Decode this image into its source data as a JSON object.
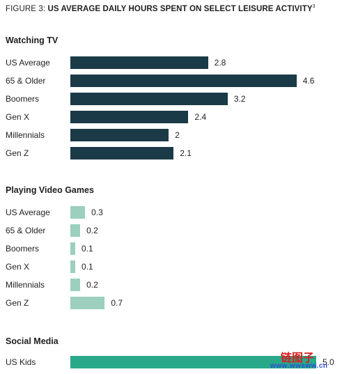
{
  "chart_data": {
    "type": "bar",
    "orientation": "horizontal",
    "title_prefix": "FIGURE 3:",
    "title": "US AVERAGE DAILY HOURS SPENT ON SELECT LEISURE ACTIVITY",
    "title_superscript": "3",
    "scale_max": 5.0,
    "groups": [
      {
        "name": "Watching TV",
        "color": "#1b3a47",
        "categories": [
          "US Average",
          "65 & Older",
          "Boomers",
          "Gen X",
          "Millennials",
          "Gen Z"
        ],
        "values": [
          2.8,
          4.6,
          3.2,
          2.4,
          2,
          2.1
        ],
        "value_labels": [
          "2.8",
          "4.6",
          "3.2",
          "2.4",
          "2",
          "2.1"
        ]
      },
      {
        "name": "Playing Video Games",
        "color": "#9ccfbd",
        "categories": [
          "US Average",
          "65 & Older",
          "Boomers",
          "Gen X",
          "Millennials",
          "Gen Z"
        ],
        "values": [
          0.3,
          0.2,
          0.1,
          0.1,
          0.2,
          0.7
        ],
        "value_labels": [
          "0.3",
          "0.2",
          "0.1",
          "0.1",
          "0.2",
          "0.7"
        ]
      },
      {
        "name": "Social Media",
        "color": "#2aa88a",
        "categories": [
          "US Kids"
        ],
        "values": [
          5.0
        ],
        "value_labels": [
          "5.0"
        ]
      }
    ]
  },
  "watermark": {
    "cn": "链图子",
    "url": "www.wwsww.cn"
  }
}
